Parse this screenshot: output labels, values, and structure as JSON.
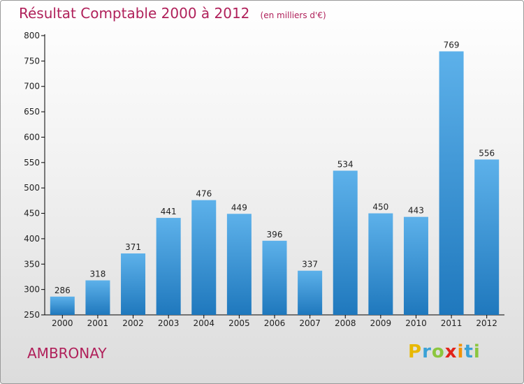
{
  "title": "Résultat Comptable 2000 à 2012",
  "unit": "(en milliers d'€)",
  "town": "AMBRONAY",
  "brand": {
    "letters": [
      "P",
      "r",
      "o",
      "x",
      "i",
      "t",
      "i"
    ],
    "colors": [
      "#e8b800",
      "#3aa1d6",
      "#8cc63f",
      "#e2231a",
      "#f39200",
      "#3aa1d6",
      "#8cc63f"
    ]
  },
  "colors": {
    "bar_light": "#5db1ea",
    "bar_dark": "#1f78bd",
    "title": "#b0205a"
  },
  "chart_data": {
    "type": "bar",
    "title": "Résultat Comptable 2000 à 2012",
    "ylabel": "",
    "xlabel": "",
    "categories": [
      "2000",
      "2001",
      "2002",
      "2003",
      "2004",
      "2005",
      "2006",
      "2007",
      "2008",
      "2009",
      "2010",
      "2011",
      "2012"
    ],
    "values": [
      286,
      318,
      371,
      441,
      476,
      449,
      396,
      337,
      534,
      450,
      443,
      769,
      556
    ],
    "ylim": [
      250,
      800
    ],
    "yticks": [
      250,
      300,
      350,
      400,
      450,
      500,
      550,
      600,
      650,
      700,
      750,
      800
    ],
    "grid": false,
    "data_labels": true
  }
}
